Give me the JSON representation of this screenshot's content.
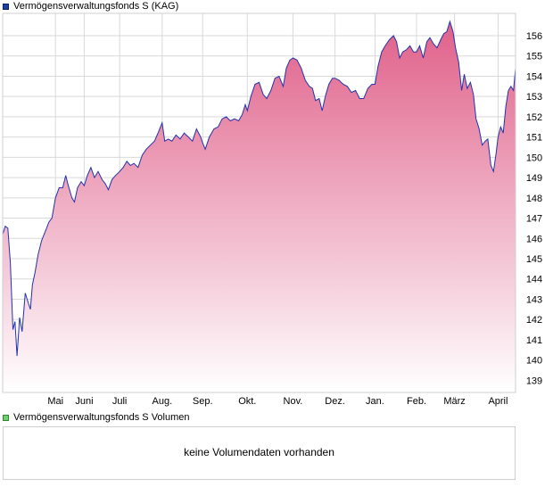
{
  "price_panel": {
    "legend_label": "Vermögensverwaltungsfonds S (KAG)"
  },
  "volume_panel": {
    "legend_label": "Vermögensverwaltungsfonds S Volumen",
    "message": "keine Volumendaten vorhanden"
  },
  "colors": {
    "line": "#2233aa",
    "fill_top": "#e0608a",
    "fill_bottom": "#ffffff",
    "grid": "#d9d9d9",
    "frame": "#cfcfcf"
  },
  "chart_data": {
    "type": "area",
    "title": "",
    "xlabel": "",
    "ylabel": "",
    "ylim": [
      138.4,
      157.1
    ],
    "yticks": [
      139,
      140,
      141,
      142,
      143,
      144,
      145,
      146,
      147,
      148,
      149,
      150,
      151,
      152,
      153,
      154,
      155,
      156
    ],
    "x_domain": [
      0,
      100
    ],
    "xticks": [
      {
        "label": "Mai",
        "x": 10.3
      },
      {
        "label": "Juni",
        "x": 15.9
      },
      {
        "label": "Juli",
        "x": 22.8
      },
      {
        "label": "Aug.",
        "x": 31.1
      },
      {
        "label": "Sep.",
        "x": 39.0
      },
      {
        "label": "Okt.",
        "x": 47.7
      },
      {
        "label": "Nov.",
        "x": 56.6
      },
      {
        "label": "Dez.",
        "x": 64.8
      },
      {
        "label": "Jan.",
        "x": 72.6
      },
      {
        "label": "Feb.",
        "x": 80.7
      },
      {
        "label": "März",
        "x": 88.1
      },
      {
        "label": "April",
        "x": 96.6
      }
    ],
    "grid": true,
    "legend": "top-left",
    "series": [
      {
        "name": "Vermögensverwaltungsfonds S (KAG)",
        "points": [
          [
            0.0,
            146.2
          ],
          [
            0.5,
            146.6
          ],
          [
            1.0,
            146.5
          ],
          [
            1.5,
            144.8
          ],
          [
            2.0,
            141.5
          ],
          [
            2.4,
            141.9
          ],
          [
            2.8,
            140.2
          ],
          [
            3.3,
            142.1
          ],
          [
            3.8,
            141.4
          ],
          [
            4.4,
            143.3
          ],
          [
            5.0,
            142.8
          ],
          [
            5.4,
            142.5
          ],
          [
            5.8,
            143.7
          ],
          [
            6.3,
            144.3
          ],
          [
            6.9,
            145.2
          ],
          [
            7.6,
            145.9
          ],
          [
            8.4,
            146.4
          ],
          [
            9.0,
            146.8
          ],
          [
            9.6,
            147.0
          ],
          [
            10.3,
            148.0
          ],
          [
            11.0,
            148.5
          ],
          [
            11.7,
            148.5
          ],
          [
            12.3,
            149.1
          ],
          [
            12.8,
            148.6
          ],
          [
            13.5,
            148.0
          ],
          [
            14.0,
            147.8
          ],
          [
            14.6,
            148.5
          ],
          [
            15.3,
            148.8
          ],
          [
            15.9,
            148.6
          ],
          [
            16.5,
            149.1
          ],
          [
            17.2,
            149.5
          ],
          [
            17.9,
            149.0
          ],
          [
            18.6,
            149.3
          ],
          [
            19.4,
            148.9
          ],
          [
            20.0,
            148.7
          ],
          [
            20.6,
            148.4
          ],
          [
            21.3,
            148.9
          ],
          [
            22.0,
            149.1
          ],
          [
            22.8,
            149.3
          ],
          [
            23.5,
            149.5
          ],
          [
            24.2,
            149.8
          ],
          [
            24.9,
            149.6
          ],
          [
            25.6,
            149.7
          ],
          [
            26.4,
            149.5
          ],
          [
            27.2,
            150.1
          ],
          [
            28.0,
            150.4
          ],
          [
            28.8,
            150.6
          ],
          [
            29.6,
            150.8
          ],
          [
            30.3,
            151.2
          ],
          [
            31.1,
            151.7
          ],
          [
            31.6,
            150.8
          ],
          [
            32.3,
            150.9
          ],
          [
            33.0,
            150.8
          ],
          [
            33.8,
            151.1
          ],
          [
            34.6,
            150.9
          ],
          [
            35.4,
            151.2
          ],
          [
            36.2,
            151.0
          ],
          [
            37.0,
            150.8
          ],
          [
            37.8,
            151.4
          ],
          [
            38.6,
            151.0
          ],
          [
            39.0,
            150.7
          ],
          [
            39.5,
            150.4
          ],
          [
            40.3,
            151.0
          ],
          [
            41.2,
            151.4
          ],
          [
            42.0,
            151.5
          ],
          [
            42.8,
            151.9
          ],
          [
            43.6,
            152.0
          ],
          [
            44.4,
            151.8
          ],
          [
            45.2,
            151.9
          ],
          [
            46.0,
            151.8
          ],
          [
            46.7,
            152.1
          ],
          [
            47.3,
            152.6
          ],
          [
            47.7,
            152.3
          ],
          [
            48.4,
            153.0
          ],
          [
            49.2,
            153.6
          ],
          [
            50.0,
            153.7
          ],
          [
            50.8,
            153.1
          ],
          [
            51.5,
            152.9
          ],
          [
            52.3,
            153.3
          ],
          [
            53.1,
            153.9
          ],
          [
            53.9,
            154.0
          ],
          [
            54.7,
            153.5
          ],
          [
            55.3,
            154.4
          ],
          [
            56.0,
            154.8
          ],
          [
            56.6,
            154.9
          ],
          [
            57.4,
            154.8
          ],
          [
            58.2,
            154.4
          ],
          [
            59.0,
            153.8
          ],
          [
            59.8,
            153.5
          ],
          [
            60.4,
            153.4
          ],
          [
            61.0,
            152.8
          ],
          [
            61.7,
            152.9
          ],
          [
            62.3,
            152.3
          ],
          [
            62.9,
            153.0
          ],
          [
            63.6,
            153.6
          ],
          [
            64.3,
            153.9
          ],
          [
            64.8,
            153.9
          ],
          [
            65.6,
            153.8
          ],
          [
            66.4,
            153.6
          ],
          [
            67.2,
            153.5
          ],
          [
            68.0,
            153.2
          ],
          [
            68.8,
            153.3
          ],
          [
            69.6,
            152.9
          ],
          [
            70.4,
            152.9
          ],
          [
            71.2,
            153.4
          ],
          [
            72.0,
            153.6
          ],
          [
            72.6,
            153.6
          ],
          [
            73.2,
            154.5
          ],
          [
            73.9,
            155.2
          ],
          [
            74.6,
            155.5
          ],
          [
            75.4,
            155.8
          ],
          [
            76.2,
            156.0
          ],
          [
            76.8,
            155.7
          ],
          [
            77.4,
            154.9
          ],
          [
            78.0,
            155.2
          ],
          [
            78.7,
            155.3
          ],
          [
            79.4,
            155.5
          ],
          [
            80.1,
            155.2
          ],
          [
            80.7,
            155.2
          ],
          [
            81.3,
            155.5
          ],
          [
            82.0,
            154.9
          ],
          [
            82.7,
            155.7
          ],
          [
            83.3,
            155.9
          ],
          [
            84.0,
            155.6
          ],
          [
            84.7,
            155.4
          ],
          [
            85.4,
            155.8
          ],
          [
            86.0,
            156.1
          ],
          [
            86.6,
            156.2
          ],
          [
            87.2,
            156.7
          ],
          [
            87.8,
            156.2
          ],
          [
            88.3,
            155.4
          ],
          [
            88.9,
            154.7
          ],
          [
            89.5,
            153.3
          ],
          [
            90.0,
            154.1
          ],
          [
            90.6,
            153.4
          ],
          [
            91.2,
            153.7
          ],
          [
            91.8,
            153.1
          ],
          [
            92.3,
            151.9
          ],
          [
            92.9,
            151.4
          ],
          [
            93.5,
            150.6
          ],
          [
            94.1,
            150.8
          ],
          [
            94.6,
            150.9
          ],
          [
            95.2,
            149.6
          ],
          [
            95.7,
            149.3
          ],
          [
            96.2,
            150.2
          ],
          [
            96.6,
            151.0
          ],
          [
            97.1,
            151.5
          ],
          [
            97.6,
            151.2
          ],
          [
            98.1,
            152.5
          ],
          [
            98.6,
            153.3
          ],
          [
            99.1,
            153.5
          ],
          [
            99.6,
            153.3
          ],
          [
            100.0,
            154.4
          ]
        ]
      }
    ]
  }
}
